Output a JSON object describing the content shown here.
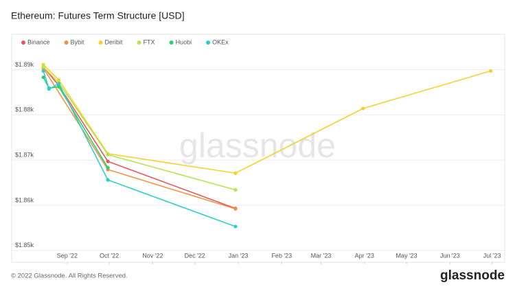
{
  "chart_data": {
    "type": "line",
    "title": "Ethereum: Futures Term Structure [USD]",
    "watermark": "glassnode",
    "footer": "© 2022 Glassnode. All Rights Reserved.",
    "brand": "glassnode",
    "xlim": [
      "2022-08-11",
      "2023-07-10"
    ],
    "xticks": [
      {
        "value": "2022-09-01",
        "label": "Sep '22"
      },
      {
        "value": "2022-10-01",
        "label": "Oct '22"
      },
      {
        "value": "2022-11-01",
        "label": "Nov '22"
      },
      {
        "value": "2022-12-01",
        "label": "Dec '22"
      },
      {
        "value": "2023-01-01",
        "label": "Jan '23"
      },
      {
        "value": "2023-02-01",
        "label": "Feb '23"
      },
      {
        "value": "2023-03-01",
        "label": "Mar '23"
      },
      {
        "value": "2023-04-01",
        "label": "Apr '23"
      },
      {
        "value": "2023-05-01",
        "label": "May '23"
      },
      {
        "value": "2023-06-01",
        "label": "Jun '23"
      },
      {
        "value": "2023-07-01",
        "label": "Jul '23"
      }
    ],
    "ylim": [
      1847.4,
      1897.8
    ],
    "yticks": [
      {
        "value": 1850,
        "label": "$1.85k"
      },
      {
        "value": 1860,
        "label": "$1.86k"
      },
      {
        "value": 1870,
        "label": "$1.87k"
      },
      {
        "value": 1880,
        "label": "$1.88k"
      },
      {
        "value": 1890,
        "label": "$1.89k"
      }
    ],
    "grid": true,
    "series": [
      {
        "name": "Binance",
        "color": "#e8545d",
        "x": [
          "2022-08-15",
          "2022-08-26",
          "2022-09-30",
          "2022-12-30"
        ],
        "values": [
          1890.6,
          1886.5,
          1869.7,
          1859.3
        ]
      },
      {
        "name": "Bybit",
        "color": "#f0923f",
        "x": [
          "2022-08-15",
          "2022-09-30",
          "2022-12-30"
        ],
        "values": [
          1890.3,
          1867.9,
          1859.2
        ]
      },
      {
        "name": "Deribit",
        "color": "#f5d130",
        "x": [
          "2022-08-15",
          "2022-08-26",
          "2022-09-30",
          "2022-12-30",
          "2023-03-31",
          "2023-06-30"
        ],
        "values": [
          1891.1,
          1887.7,
          1871.4,
          1867.1,
          1881.4,
          1889.7
        ]
      },
      {
        "name": "FTX",
        "color": "#b5e44b",
        "x": [
          "2022-08-15",
          "2022-08-26",
          "2022-09-30",
          "2022-12-30"
        ],
        "values": [
          1890.6,
          1887.1,
          1871.2,
          1863.4
        ]
      },
      {
        "name": "Huobi",
        "color": "#2ecc71",
        "x": [
          "2022-08-15",
          "2022-08-19",
          "2022-08-26",
          "2022-09-30"
        ],
        "values": [
          1888.3,
          1885.9,
          1886.2,
          1868.3
        ]
      },
      {
        "name": "OKEx",
        "color": "#2ad0c8",
        "x": [
          "2022-08-15",
          "2022-08-19",
          "2022-08-26",
          "2022-09-30",
          "2022-12-30"
        ],
        "values": [
          1889.7,
          1885.7,
          1886.9,
          1865.6,
          1855.3
        ]
      }
    ]
  }
}
